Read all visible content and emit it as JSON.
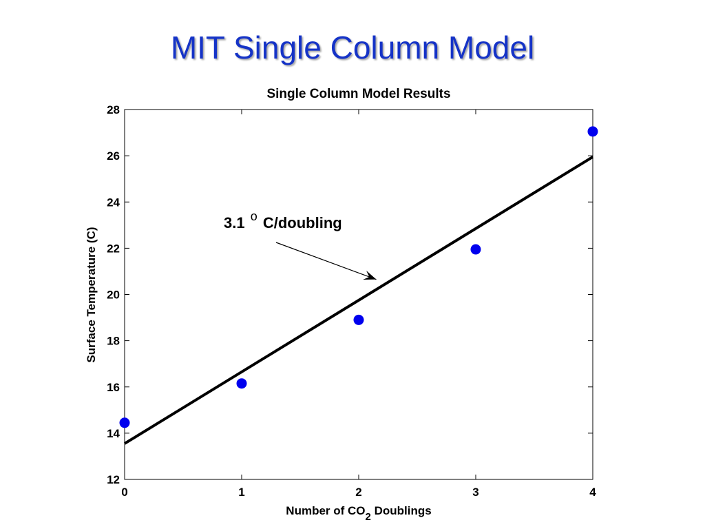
{
  "slide": {
    "title": "MIT Single Column Model"
  },
  "chart_data": {
    "type": "scatter",
    "title": "Single Column Model Results",
    "xlabel": {
      "prefix": "Number of CO",
      "subscript": "2",
      "suffix": " Doublings"
    },
    "ylabel": "Surface Temperature (C)",
    "xlim": [
      0,
      4
    ],
    "ylim": [
      12,
      28
    ],
    "xticks": [
      0,
      1,
      2,
      3,
      4
    ],
    "yticks": [
      12,
      14,
      16,
      18,
      20,
      22,
      24,
      26,
      28
    ],
    "grid": false,
    "series": [
      {
        "marker": "circle",
        "color": "#0000ee",
        "points": [
          {
            "x": 0,
            "y": 14.45
          },
          {
            "x": 1,
            "y": 16.15
          },
          {
            "x": 2,
            "y": 18.9
          },
          {
            "x": 3,
            "y": 21.95
          },
          {
            "x": 4,
            "y": 27.05
          }
        ]
      }
    ],
    "fit_line": {
      "color": "#000000",
      "points": [
        {
          "x": 0,
          "y": 13.55
        },
        {
          "x": 4,
          "y": 25.95
        }
      ]
    },
    "annotation": {
      "value": "3.1",
      "degree_symbol": "o",
      "unit": "C/doubling",
      "arrow_target": {
        "x": 2.15,
        "y": 20.65
      }
    }
  }
}
